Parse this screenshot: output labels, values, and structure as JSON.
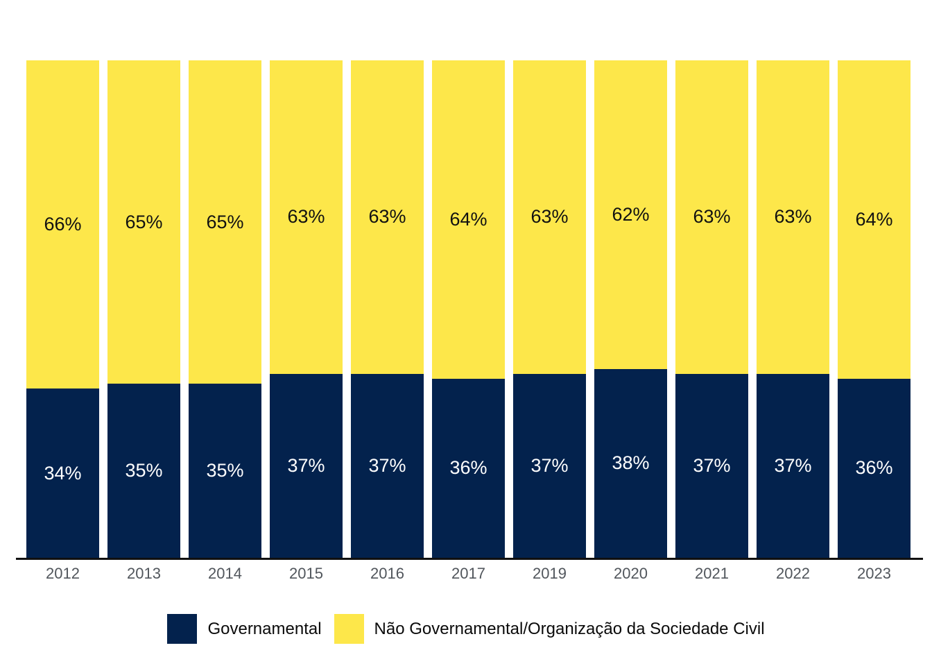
{
  "chart_data": {
    "type": "bar",
    "stacked": true,
    "orientation": "vertical",
    "title": "",
    "xlabel": "",
    "ylabel": "",
    "ylim": [
      0,
      100
    ],
    "grid": false,
    "legend_position": "bottom",
    "value_unit": "%",
    "categories": [
      "2012",
      "2013",
      "2014",
      "2015",
      "2016",
      "2017",
      "2019",
      "2020",
      "2021",
      "2022",
      "2023"
    ],
    "series": [
      {
        "name": "Governamental",
        "color": "#03224D",
        "label_color": "#ffffff",
        "values": [
          34,
          35,
          35,
          37,
          37,
          36,
          37,
          38,
          37,
          37,
          36
        ],
        "display_labels": [
          "34%",
          "35%",
          "35%",
          "37%",
          "37%",
          "36%",
          "37%",
          "38%",
          "37%",
          "37%",
          "36%"
        ]
      },
      {
        "name": "Não Governamental/Organização da Sociedade Civil",
        "color": "#FDE74A",
        "label_color": "#111111",
        "values": [
          66,
          65,
          65,
          63,
          63,
          64,
          63,
          62,
          63,
          63,
          64
        ],
        "display_labels": [
          "66%",
          "65%",
          "65%",
          "63%",
          "63%",
          "64%",
          "63%",
          "62%",
          "63%",
          "63%",
          "64%"
        ]
      }
    ]
  },
  "legend": {
    "items": [
      {
        "label": "Governamental",
        "color": "#03224D"
      },
      {
        "label": "Não Governamental/Organização da Sociedade Civil",
        "color": "#FDE74A"
      }
    ]
  },
  "axis": {
    "line_color": "#111111",
    "tick_label_color": "#51565c"
  }
}
